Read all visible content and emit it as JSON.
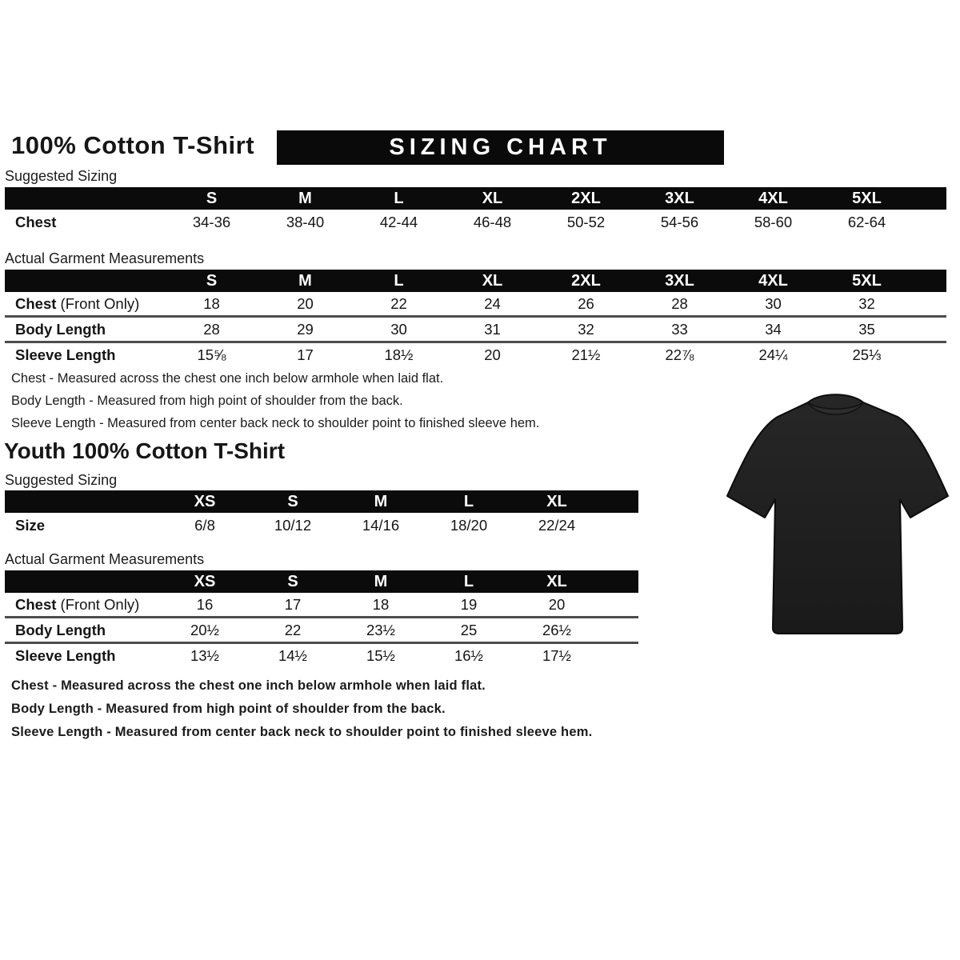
{
  "header": {
    "title": "100% Cotton T-Shirt",
    "banner": "SIZING CHART"
  },
  "adult": {
    "suggested_label": "Suggested Sizing",
    "suggested": {
      "columns": [
        "S",
        "M",
        "L",
        "XL",
        "2XL",
        "3XL",
        "4XL",
        "5XL"
      ],
      "rows": [
        {
          "label": "Chest",
          "suffix": "",
          "values": [
            "34-36",
            "38-40",
            "42-44",
            "46-48",
            "50-52",
            "54-56",
            "58-60",
            "62-64"
          ]
        }
      ]
    },
    "garment_label": "Actual Garment Measurements",
    "garment": {
      "columns": [
        "S",
        "M",
        "L",
        "XL",
        "2XL",
        "3XL",
        "4XL",
        "5XL"
      ],
      "rows": [
        {
          "label": "Chest",
          "suffix": " (Front Only)",
          "values": [
            "18",
            "20",
            "22",
            "24",
            "26",
            "28",
            "30",
            "32"
          ]
        },
        {
          "label": "Body Length",
          "suffix": "",
          "values": [
            "28",
            "29",
            "30",
            "31",
            "32",
            "33",
            "34",
            "35"
          ]
        },
        {
          "label": "Sleeve Length",
          "suffix": "",
          "values": [
            "15⅝",
            "17",
            "18½",
            "20",
            "21½",
            "22⅞",
            "24¼",
            "25⅓"
          ]
        }
      ]
    },
    "notes": [
      "Chest - Measured across the chest one inch below armhole when laid flat.",
      "Body Length - Measured from high point of shoulder from the back.",
      "Sleeve Length - Measured from center back neck to shoulder point to finished sleeve hem."
    ]
  },
  "youth": {
    "title": "Youth 100% Cotton T-Shirt",
    "suggested_label": "Suggested Sizing",
    "suggested": {
      "columns": [
        "XS",
        "S",
        "M",
        "L",
        "XL"
      ],
      "rows": [
        {
          "label": "Size",
          "suffix": "",
          "values": [
            "6/8",
            "10/12",
            "14/16",
            "18/20",
            "22/24"
          ]
        }
      ]
    },
    "garment_label": "Actual Garment Measurements",
    "garment": {
      "columns": [
        "XS",
        "S",
        "M",
        "L",
        "XL"
      ],
      "rows": [
        {
          "label": "Chest",
          "suffix": " (Front Only)",
          "values": [
            "16",
            "17",
            "18",
            "19",
            "20"
          ]
        },
        {
          "label": "Body Length",
          "suffix": "",
          "values": [
            "20½",
            "22",
            "23½",
            "25",
            "26½"
          ]
        },
        {
          "label": "Sleeve Length",
          "suffix": "",
          "values": [
            "13½",
            "14½",
            "15½",
            "16½",
            "17½"
          ]
        }
      ]
    },
    "notes": [
      "Chest - Measured across the chest one inch below armhole when laid flat.",
      "Body Length - Measured from high point of shoulder from the back.",
      "Sleeve Length - Measured from center back neck to shoulder point to finished sleeve hem."
    ]
  },
  "tshirt_image": {
    "description": "black short-sleeve crew-neck t-shirt photo",
    "shirt_color": "#1f1f1f"
  },
  "colors": {
    "header_bar": "#0b0b0b",
    "text": "#151515",
    "row_separator": "#4d4d4d",
    "background": "#ffffff"
  }
}
